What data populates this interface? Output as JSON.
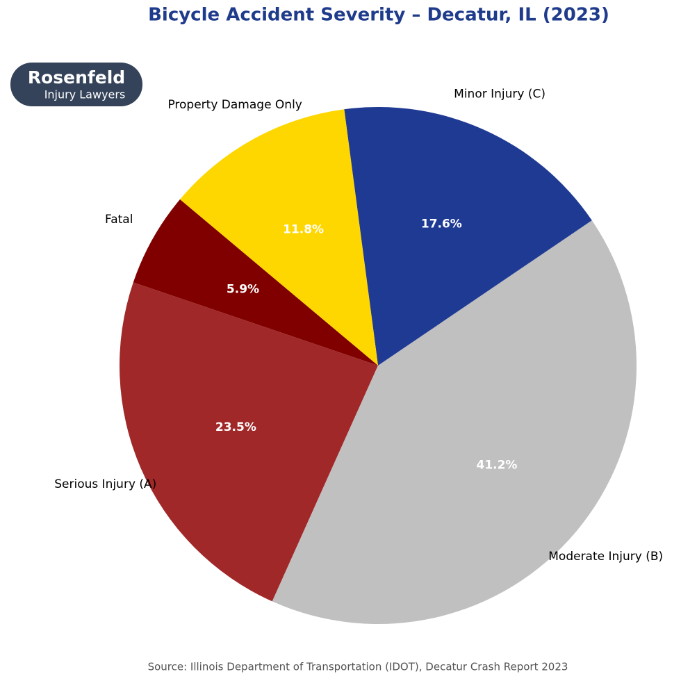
{
  "chart_data": {
    "type": "pie",
    "title": "Bicycle Accident Severity – Decatur, IL (2023)",
    "categories": [
      "Fatal",
      "Serious Injury (A)",
      "Moderate Injury (B)",
      "Minor Injury (C)",
      "Property Damage Only"
    ],
    "values": [
      5.9,
      23.5,
      41.2,
      17.6,
      11.8
    ],
    "value_labels": [
      "5.9%",
      "23.5%",
      "41.2%",
      "17.6%",
      "11.8%"
    ],
    "colors": [
      "#800000",
      "#a12828",
      "#c0c0c0",
      "#1f3a93",
      "#ffd700"
    ],
    "source": "Source: Illinois Department of Transportation (IDOT), Decatur Crash Report 2023"
  },
  "logo": {
    "name": "Rosenfeld",
    "tagline": "Injury Lawyers"
  }
}
